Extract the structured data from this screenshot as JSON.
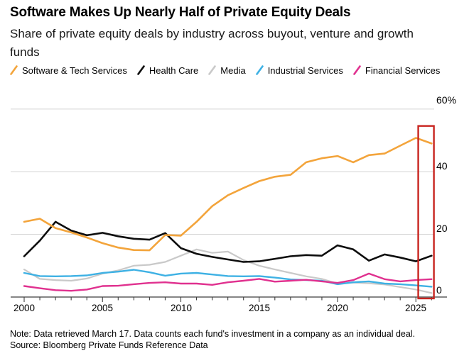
{
  "header": {
    "title": "Software Makes Up Nearly Half of Private Equity Deals",
    "subtitle": "Share of private equity deals by industry across buyout, venture and growth funds"
  },
  "legend": [
    {
      "label": "Software & Tech Services",
      "color": "#F3A43B"
    },
    {
      "label": "Health Care",
      "color": "#0D0D0D"
    },
    {
      "label": "Media",
      "color": "#C9C9C9"
    },
    {
      "label": "Industrial Services",
      "color": "#3EB1E4"
    },
    {
      "label": "Financial Services",
      "color": "#E0318F"
    }
  ],
  "chart_data": {
    "type": "line",
    "title": "Software Makes Up Nearly Half of Private Equity Deals",
    "subtitle": "Share of private equity deals by industry across buyout, venture and growth funds",
    "x": [
      2000,
      2001,
      2002,
      2003,
      2004,
      2005,
      2006,
      2007,
      2008,
      2009,
      2010,
      2011,
      2012,
      2013,
      2014,
      2015,
      2016,
      2017,
      2018,
      2019,
      2020,
      2021,
      2022,
      2023,
      2024,
      2025,
      2026
    ],
    "series": [
      {
        "name": "Software & Tech Services",
        "color": "#F3A43B",
        "values": [
          24,
          25,
          22,
          20.6,
          19,
          17.2,
          15.8,
          15,
          14.9,
          19.8,
          19.6,
          24,
          29,
          32.5,
          34.8,
          37,
          38.4,
          39,
          43,
          44.3,
          45,
          43,
          45.3,
          45.8,
          48.3,
          50.8,
          49
        ]
      },
      {
        "name": "Health Care",
        "color": "#0D0D0D",
        "values": [
          13,
          18,
          24,
          21.2,
          19.7,
          20.5,
          19.4,
          18.6,
          18.3,
          20.4,
          15.6,
          13.8,
          12.8,
          12,
          11.2,
          11.4,
          12.2,
          13,
          13.4,
          13.2,
          16.5,
          15.2,
          11.6,
          13.6,
          12.6,
          11.4,
          13.2
        ]
      },
      {
        "name": "Media",
        "color": "#C9C9C9",
        "values": [
          8.8,
          5.8,
          5.4,
          5.2,
          5.9,
          7.5,
          8.5,
          10,
          10.3,
          11.2,
          13.2,
          15.2,
          14.1,
          14.5,
          11.8,
          10,
          8.8,
          7.7,
          6.6,
          5.8,
          4.3,
          4.6,
          4.4,
          4,
          3.2,
          2.4,
          1.3
        ]
      },
      {
        "name": "Industrial Services",
        "color": "#3EB1E4",
        "values": [
          7.7,
          6.7,
          6.6,
          6.7,
          6.9,
          7.7,
          8.1,
          8.7,
          7.9,
          6.8,
          7.5,
          7.7,
          7.2,
          6.7,
          6.6,
          6.7,
          6.2,
          5.6,
          5.4,
          5.2,
          4.1,
          4.7,
          5,
          4.3,
          4.1,
          3.7,
          3.3
        ]
      },
      {
        "name": "Financial Services",
        "color": "#E0318F",
        "values": [
          3.5,
          2.8,
          2.2,
          2,
          2.4,
          3.5,
          3.6,
          4.1,
          4.5,
          4.7,
          4.3,
          4.3,
          3.9,
          4.7,
          5.2,
          5.8,
          4.9,
          5.2,
          5.5,
          5,
          4.5,
          5.4,
          7.5,
          5.7,
          5,
          5.4,
          5.7
        ]
      }
    ],
    "y_axis": {
      "range": [
        0,
        60
      ],
      "gridlines": [
        20,
        40,
        60
      ],
      "ticks": [
        "0",
        "20",
        "40",
        "60%"
      ],
      "side": "right"
    },
    "x_axis": {
      "labels": [
        "2000",
        "2005",
        "2010",
        "2015",
        "2020",
        "2025"
      ],
      "label_years": [
        2000,
        2005,
        2010,
        2015,
        2020,
        2025
      ],
      "minor_tick_every": 1
    },
    "annotation": {
      "highlight_box": {
        "color": "#C8241F",
        "x_start_year": 2025.15,
        "x_end_year": 2026.15,
        "y_min": -0.45,
        "y_max": 54.6
      }
    },
    "legend_position": "top",
    "grid": true
  },
  "footer": {
    "note": "Note: Data retrieved March 17. Data counts each fund's investment in a company as an individual deal.",
    "source": "Source: Bloomberg Private Funds Reference Data"
  }
}
